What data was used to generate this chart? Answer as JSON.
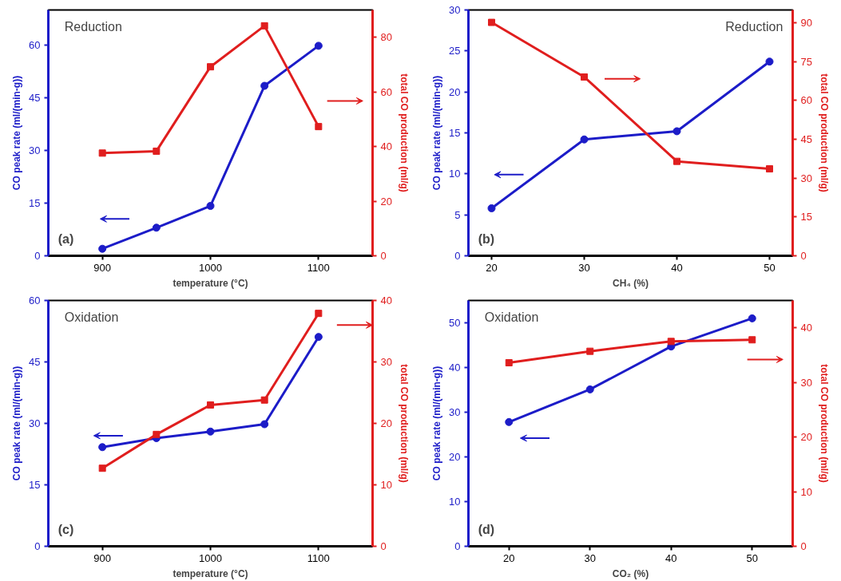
{
  "chart_data": [
    {
      "type": "line",
      "xlabel": "temperature (°C)",
      "ylabel": "CO peak rate (ml/(min-g))",
      "y2label": "total CO production (ml/g)",
      "annotations": [
        "Reduction",
        "(a)"
      ],
      "x": [
        900,
        950,
        1000,
        1050,
        1100
      ],
      "xlim": [
        850,
        1150
      ],
      "xticks": [
        900,
        1000,
        1100
      ],
      "ylim": [
        0,
        70
      ],
      "yticks": [
        0,
        15,
        30,
        45,
        60
      ],
      "y2lim": [
        0,
        90
      ],
      "y2ticks": [
        0,
        20,
        40,
        60,
        80
      ],
      "grid": false,
      "series": [
        {
          "color": "#1c1cc8",
          "marker": "circle",
          "values": [
            2.0,
            8.0,
            14.2,
            48.4,
            59.8
          ]
        },
        {
          "color": "#e01e1e",
          "marker": "square",
          "axis": "y2",
          "values": [
            37.6,
            38.3,
            69.2,
            84.2,
            47.3
          ]
        }
      ]
    },
    {
      "type": "line",
      "xlabel": "CH₄ (%)",
      "ylabel": "CO peak rate (ml/(min-g))",
      "y2label": "total CO production (ml/g)",
      "annotations": [
        "Reduction",
        "(b)"
      ],
      "x": [
        20,
        30,
        40,
        50
      ],
      "xlim": [
        17.5,
        52.5
      ],
      "xticks": [
        20,
        30,
        40,
        50
      ],
      "ylim": [
        0,
        30
      ],
      "yticks": [
        0,
        5,
        10,
        15,
        20,
        25,
        30
      ],
      "y2lim": [
        0,
        95
      ],
      "y2ticks": [
        0,
        15,
        30,
        45,
        60,
        75,
        90
      ],
      "grid": false,
      "series": [
        {
          "color": "#1c1cc8",
          "marker": "circle",
          "values": [
            5.8,
            14.2,
            15.2,
            23.7
          ]
        },
        {
          "color": "#e01e1e",
          "marker": "square",
          "axis": "y2",
          "values": [
            90.2,
            69.1,
            36.5,
            33.6
          ]
        }
      ]
    },
    {
      "type": "line",
      "xlabel": "temperature (°C)",
      "ylabel": "CO peak rate (ml/(min-g))",
      "y2label": "total CO production (ml/g)",
      "annotations": [
        "Oxidation",
        "(c)"
      ],
      "x": [
        900,
        950,
        1000,
        1050,
        1100
      ],
      "xlim": [
        850,
        1150
      ],
      "xticks": [
        900,
        1000,
        1100
      ],
      "ylim": [
        0,
        60
      ],
      "yticks": [
        0,
        15,
        30,
        45,
        60
      ],
      "y2lim": [
        0,
        40
      ],
      "y2ticks": [
        0,
        10,
        20,
        30,
        40
      ],
      "grid": false,
      "series": [
        {
          "color": "#1c1cc8",
          "marker": "circle",
          "values": [
            24.2,
            26.4,
            28.0,
            29.8,
            51.1
          ]
        },
        {
          "color": "#e01e1e",
          "marker": "square",
          "axis": "y2",
          "values": [
            12.7,
            18.2,
            23.0,
            23.8,
            37.9
          ]
        }
      ]
    },
    {
      "type": "line",
      "xlabel": "CO₂ (%)",
      "ylabel": "CO peak rate (ml/(min-g))",
      "y2label": "total CO production (ml/g)",
      "annotations": [
        "Oxidation",
        "(d)"
      ],
      "x": [
        20,
        30,
        40,
        50
      ],
      "xlim": [
        15,
        55
      ],
      "xticks": [
        20,
        30,
        40,
        50
      ],
      "ylim": [
        0,
        55
      ],
      "yticks": [
        0,
        10,
        20,
        30,
        40,
        50
      ],
      "y2lim": [
        0,
        45
      ],
      "y2ticks": [
        0,
        10,
        20,
        30,
        40
      ],
      "grid": false,
      "series": [
        {
          "color": "#1c1cc8",
          "marker": "circle",
          "values": [
            27.8,
            35.1,
            44.7,
            51.0
          ]
        },
        {
          "color": "#e01e1e",
          "marker": "square",
          "axis": "y2",
          "values": [
            33.6,
            35.7,
            37.5,
            37.8
          ]
        }
      ]
    }
  ]
}
